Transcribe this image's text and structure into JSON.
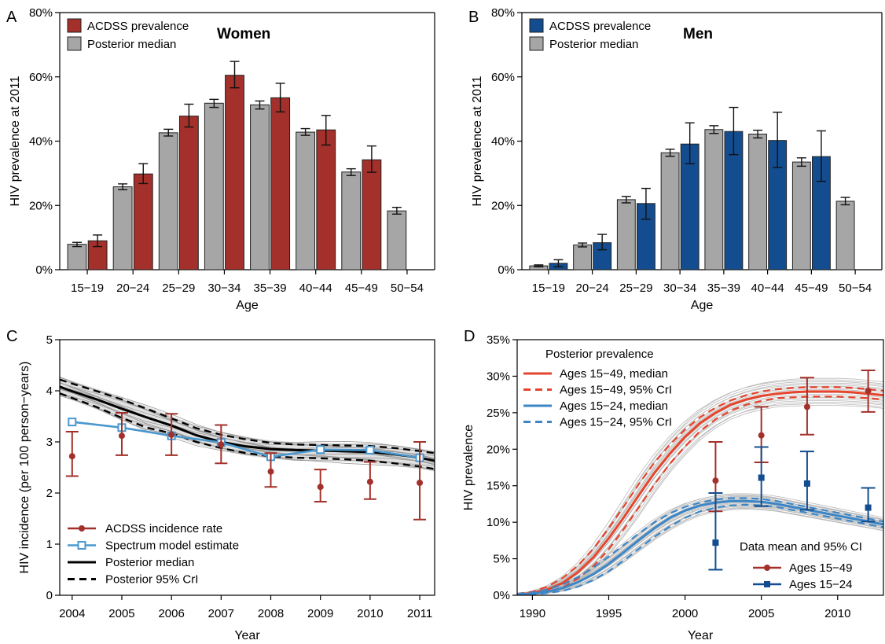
{
  "chart_data": [
    {
      "panel": "A",
      "type": "bar",
      "title": "Women",
      "xlabel": "Age",
      "ylabel": "HIV prevalence at 2011",
      "ylim": [
        0,
        0.8
      ],
      "yticks": [
        "0%",
        "20%",
        "40%",
        "60%",
        "80%"
      ],
      "categories": [
        "15−19",
        "20−24",
        "25−29",
        "30−34",
        "35−39",
        "40−44",
        "45−49",
        "50−54"
      ],
      "series": [
        {
          "name": "Posterior median",
          "color": "#a6a6a6",
          "values": [
            0.079,
            0.258,
            0.426,
            0.518,
            0.513,
            0.428,
            0.304,
            0.183
          ],
          "lower": [
            0.072,
            0.249,
            0.416,
            0.505,
            0.5,
            0.418,
            0.293,
            0.173
          ],
          "upper": [
            0.085,
            0.267,
            0.437,
            0.53,
            0.525,
            0.439,
            0.314,
            0.194
          ]
        },
        {
          "name": "ACDSS prevalence",
          "color": "#a3302a",
          "values": [
            0.09,
            0.298,
            0.478,
            0.605,
            0.535,
            0.435,
            0.342,
            null
          ],
          "lower": [
            0.072,
            0.268,
            0.444,
            0.566,
            0.491,
            0.388,
            0.303,
            null
          ],
          "upper": [
            0.108,
            0.33,
            0.515,
            0.648,
            0.58,
            0.48,
            0.385,
            null
          ]
        }
      ],
      "legend_position": "top-left"
    },
    {
      "panel": "B",
      "type": "bar",
      "title": "Men",
      "xlabel": "Age",
      "ylabel": "HIV prevalence at 2011",
      "ylim": [
        0,
        0.8
      ],
      "yticks": [
        "0%",
        "20%",
        "40%",
        "60%",
        "80%"
      ],
      "categories": [
        "15−19",
        "20−24",
        "25−29",
        "30−34",
        "35−39",
        "40−44",
        "45−49",
        "50−54"
      ],
      "series": [
        {
          "name": "Posterior median",
          "color": "#a6a6a6",
          "values": [
            0.012,
            0.077,
            0.218,
            0.364,
            0.436,
            0.422,
            0.335,
            0.213
          ],
          "lower": [
            0.009,
            0.071,
            0.208,
            0.353,
            0.424,
            0.41,
            0.322,
            0.202
          ],
          "upper": [
            0.015,
            0.083,
            0.228,
            0.375,
            0.448,
            0.434,
            0.348,
            0.225
          ]
        },
        {
          "name": "ACDSS prevalence",
          "color": "#134d8f",
          "values": [
            0.02,
            0.084,
            0.206,
            0.391,
            0.43,
            0.402,
            0.352,
            null
          ],
          "lower": [
            0.009,
            0.062,
            0.157,
            0.33,
            0.358,
            0.318,
            0.275,
            null
          ],
          "upper": [
            0.031,
            0.11,
            0.253,
            0.457,
            0.505,
            0.49,
            0.432,
            null
          ]
        }
      ],
      "legend_position": "top-left"
    },
    {
      "panel": "C",
      "type": "line",
      "xlabel": "Year",
      "ylabel": "HIV incidence (per 100 person−years)",
      "xlim": [
        2003.75,
        2011.3
      ],
      "ylim": [
        0,
        5
      ],
      "xticks": [
        2004,
        2005,
        2006,
        2007,
        2008,
        2009,
        2010,
        2011
      ],
      "yticks": [
        0,
        1,
        2,
        3,
        4,
        5
      ],
      "series": [
        {
          "name": "ACDSS incidence rate",
          "color": "#a3302a",
          "style": "points-errorbars",
          "x": [
            2004,
            2005,
            2006,
            2007,
            2008,
            2009,
            2010,
            2011
          ],
          "y": [
            2.72,
            3.12,
            3.14,
            2.95,
            2.42,
            2.12,
            2.22,
            2.2
          ],
          "lower": [
            2.33,
            2.74,
            2.74,
            2.58,
            2.12,
            1.83,
            1.88,
            1.48
          ],
          "upper": [
            3.2,
            3.57,
            3.55,
            3.33,
            2.78,
            2.46,
            2.61,
            3.0
          ]
        },
        {
          "name": "Spectrum model estimate",
          "color": "#4a98cf",
          "style": "line-open-squares",
          "x": [
            2004,
            2005,
            2006,
            2007,
            2008,
            2009,
            2010,
            2011
          ],
          "y": [
            3.39,
            3.28,
            3.12,
            2.99,
            2.71,
            2.85,
            2.84,
            2.69
          ]
        },
        {
          "name": "Posterior median",
          "color": "#000000",
          "style": "solid",
          "x": [
            2003.75,
            2004,
            2004.5,
            2005,
            2005.5,
            2006,
            2006.5,
            2007,
            2007.5,
            2008,
            2008.5,
            2009,
            2009.5,
            2010,
            2010.5,
            2011,
            2011.3
          ],
          "y": [
            4.08,
            3.99,
            3.83,
            3.65,
            3.48,
            3.32,
            3.13,
            3.0,
            2.91,
            2.86,
            2.84,
            2.83,
            2.82,
            2.8,
            2.76,
            2.69,
            2.63
          ]
        },
        {
          "name": "Posterior 95% CrI",
          "color": "#000000",
          "style": "dashed",
          "x": [
            2003.75,
            2004,
            2004.5,
            2005,
            2005.5,
            2006,
            2006.5,
            2007,
            2007.5,
            2008,
            2008.5,
            2009,
            2009.5,
            2010,
            2010.5,
            2011,
            2011.3
          ],
          "upper": [
            4.22,
            4.14,
            3.99,
            3.83,
            3.65,
            3.46,
            3.27,
            3.14,
            3.05,
            2.98,
            2.95,
            2.94,
            2.93,
            2.92,
            2.88,
            2.82,
            2.78
          ],
          "lower": [
            3.95,
            3.86,
            3.68,
            3.47,
            3.28,
            3.17,
            3.0,
            2.88,
            2.78,
            2.72,
            2.69,
            2.68,
            2.66,
            2.63,
            2.58,
            2.52,
            2.47
          ]
        }
      ],
      "posterior_samples_band_color": "#bdbdbd",
      "legend_position": "bottom-left"
    },
    {
      "panel": "D",
      "type": "line",
      "xlabel": "Year",
      "ylabel": "HIV prevalence",
      "xlim": [
        1989,
        2013
      ],
      "ylim": [
        0,
        0.35
      ],
      "xticks": [
        1990,
        1995,
        2000,
        2005,
        2010
      ],
      "yticks": [
        "0%",
        "5%",
        "10%",
        "15%",
        "20%",
        "25%",
        "30%",
        "35%"
      ],
      "legend_titles": [
        "Posterior prevalence",
        "Data mean and 95% CI"
      ],
      "series": [
        {
          "name": "Ages 15−49, median",
          "color": "#e5452d",
          "style": "solid",
          "x": [
            1989,
            1990,
            1991,
            1992,
            1993,
            1994,
            1995,
            1996,
            1997,
            1998,
            1999,
            2000,
            2001,
            2002,
            2003,
            2004,
            2005,
            2006,
            2007,
            2008,
            2009,
            2010,
            2011,
            2012,
            2013
          ],
          "y": [
            0.001,
            0.003,
            0.008,
            0.017,
            0.032,
            0.052,
            0.078,
            0.107,
            0.138,
            0.168,
            0.194,
            0.217,
            0.236,
            0.25,
            0.261,
            0.268,
            0.273,
            0.276,
            0.278,
            0.279,
            0.279,
            0.279,
            0.278,
            0.276,
            0.274
          ]
        },
        {
          "name": "Ages 15−49, 95% CrI",
          "color": "#e5452d",
          "style": "dashed",
          "x": [
            1989,
            1990,
            1991,
            1992,
            1993,
            1994,
            1995,
            1996,
            1997,
            1998,
            1999,
            2000,
            2001,
            2002,
            2003,
            2004,
            2005,
            2006,
            2007,
            2008,
            2009,
            2010,
            2011,
            2012,
            2013
          ],
          "upper": [
            0.002,
            0.005,
            0.012,
            0.024,
            0.041,
            0.064,
            0.092,
            0.122,
            0.153,
            0.182,
            0.206,
            0.227,
            0.244,
            0.257,
            0.267,
            0.274,
            0.279,
            0.282,
            0.284,
            0.285,
            0.285,
            0.285,
            0.284,
            0.282,
            0.28
          ],
          "lower": [
            0.0,
            0.002,
            0.005,
            0.011,
            0.023,
            0.04,
            0.063,
            0.091,
            0.121,
            0.152,
            0.18,
            0.204,
            0.225,
            0.241,
            0.253,
            0.261,
            0.266,
            0.27,
            0.271,
            0.272,
            0.272,
            0.272,
            0.271,
            0.27,
            0.268
          ]
        },
        {
          "name": "Ages 15−24, median",
          "color": "#3d86c6",
          "style": "solid",
          "x": [
            1989,
            1990,
            1991,
            1992,
            1993,
            1994,
            1995,
            1996,
            1997,
            1998,
            1999,
            2000,
            2001,
            2002,
            2003,
            2004,
            2005,
            2006,
            2007,
            2008,
            2009,
            2010,
            2011,
            2012,
            2013
          ],
          "y": [
            0.001,
            0.002,
            0.005,
            0.01,
            0.018,
            0.029,
            0.043,
            0.059,
            0.076,
            0.092,
            0.106,
            0.116,
            0.123,
            0.127,
            0.129,
            0.129,
            0.128,
            0.125,
            0.121,
            0.117,
            0.113,
            0.109,
            0.105,
            0.101,
            0.097
          ]
        },
        {
          "name": "Ages 15−24, 95% CrI",
          "color": "#3d86c6",
          "style": "dashed",
          "x": [
            1989,
            1990,
            1991,
            1992,
            1993,
            1994,
            1995,
            1996,
            1997,
            1998,
            1999,
            2000,
            2001,
            2002,
            2003,
            2004,
            2005,
            2006,
            2007,
            2008,
            2009,
            2010,
            2011,
            2012,
            2013
          ],
          "upper": [
            0.002,
            0.004,
            0.008,
            0.015,
            0.025,
            0.038,
            0.053,
            0.069,
            0.085,
            0.1,
            0.112,
            0.121,
            0.127,
            0.131,
            0.133,
            0.133,
            0.132,
            0.129,
            0.125,
            0.121,
            0.117,
            0.113,
            0.109,
            0.105,
            0.101
          ],
          "lower": [
            0.0,
            0.001,
            0.003,
            0.006,
            0.012,
            0.021,
            0.033,
            0.048,
            0.064,
            0.08,
            0.094,
            0.106,
            0.115,
            0.12,
            0.123,
            0.124,
            0.123,
            0.121,
            0.117,
            0.113,
            0.109,
            0.105,
            0.101,
            0.097,
            0.093
          ]
        },
        {
          "name": "Ages 15−49",
          "color": "#a3302a",
          "style": "points-errorbars",
          "group": "data",
          "x": [
            2002,
            2005,
            2008,
            2012
          ],
          "y": [
            0.157,
            0.219,
            0.258,
            0.28
          ],
          "lower": [
            0.115,
            0.182,
            0.22,
            0.251
          ],
          "upper": [
            0.21,
            0.258,
            0.298,
            0.308
          ]
        },
        {
          "name": "Ages 15−24",
          "color": "#134d8f",
          "style": "points-errorbars",
          "group": "data",
          "x": [
            2002,
            2005,
            2008,
            2012
          ],
          "y": [
            0.072,
            0.161,
            0.153,
            0.12
          ],
          "lower": [
            0.035,
            0.122,
            0.117,
            0.101
          ],
          "upper": [
            0.14,
            0.203,
            0.197,
            0.147
          ]
        }
      ],
      "posterior_samples_band_color": "#bdbdbd",
      "legend_position": "top-left and bottom-right"
    }
  ]
}
